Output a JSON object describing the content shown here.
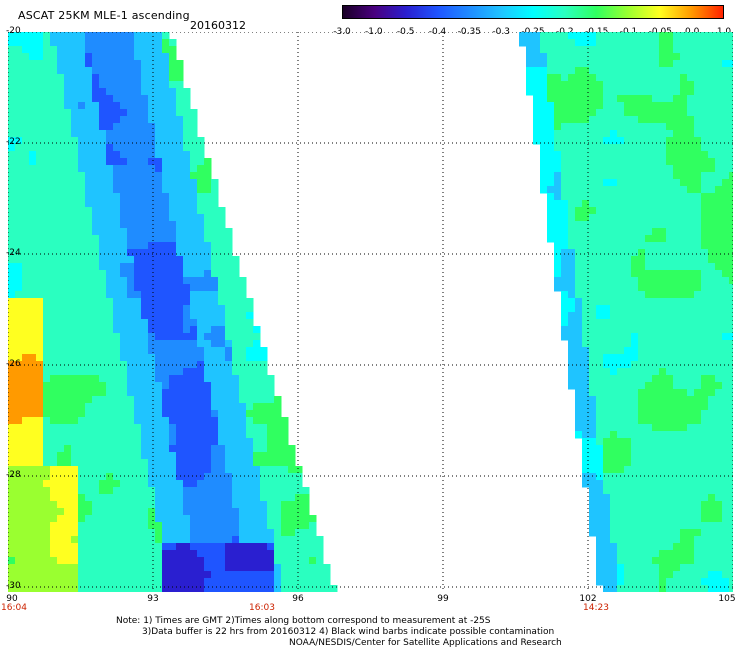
{
  "header": {
    "title": "ASCAT 25KM MLE-1 ascending",
    "date": "20160312"
  },
  "colorbar": {
    "labels": [
      "-3.0",
      "-1.0",
      "-0.5",
      "-0.4",
      "-0.35",
      "-0.3",
      "-0.25",
      "-0.2",
      "-0.15",
      "-0.1",
      "-0.05",
      "0.0",
      "1.0"
    ],
    "colors": [
      "#1a0026",
      "#4a0080",
      "#2a1fd0",
      "#1f55ff",
      "#1f8cff",
      "#1fc4ff",
      "#00ffff",
      "#2affc0",
      "#30ff60",
      "#9aff30",
      "#ffff20",
      "#ff9a00",
      "#ff2200"
    ]
  },
  "map": {
    "y_axis": [
      "-20",
      "-22",
      "-24",
      "-26",
      "-28",
      "-30"
    ],
    "x_axis": [
      "90",
      "93",
      "96",
      "99",
      "102",
      "105"
    ],
    "time_labels": [
      "16:04",
      "16:03",
      "14:23"
    ]
  },
  "notes": {
    "line1": "Note: 1) Times are GMT 2)Times along bottom correspond to measurement at -25S",
    "line2": "3)Data buffer is 22 hrs from 20160312 4) Black wind barbs indicate possible contamination",
    "line3": "NOAA/NESDIS/Center for Satellite Applications and Research"
  }
}
